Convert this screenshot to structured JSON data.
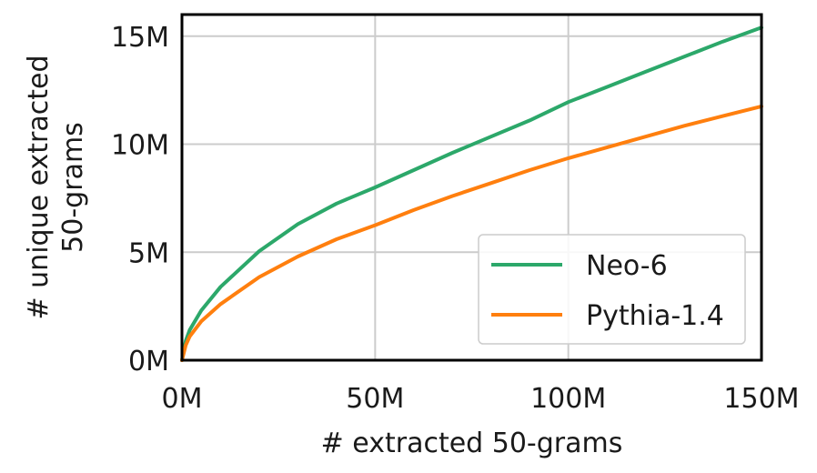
{
  "chart_data": {
    "type": "line",
    "xlabel": "# extracted 50-grams",
    "ylabel_lines": [
      "# unique extracted",
      "50-grams"
    ],
    "x_unit": "M",
    "y_unit": "M",
    "xlim": [
      0,
      150
    ],
    "ylim": [
      0,
      16
    ],
    "x_ticks": [
      0,
      50,
      100,
      150
    ],
    "y_ticks": [
      0,
      5,
      10,
      15
    ],
    "x_tick_labels": [
      "0M",
      "50M",
      "100M",
      "150M"
    ],
    "y_tick_labels": [
      "0M",
      "5M",
      "10M",
      "15M"
    ],
    "grid": true,
    "legend_position": "lower-right",
    "x": [
      0,
      1,
      2,
      5,
      10,
      20,
      30,
      40,
      50,
      60,
      70,
      80,
      90,
      100,
      110,
      120,
      130,
      140,
      150
    ],
    "series": [
      {
        "name": "Neo-6",
        "color": "#2ca86a",
        "values": [
          0,
          0.9,
          1.4,
          2.3,
          3.4,
          5.05,
          6.3,
          7.25,
          8.0,
          8.8,
          9.6,
          10.35,
          11.1,
          11.95,
          12.65,
          13.35,
          14.05,
          14.75,
          15.4
        ]
      },
      {
        "name": "Pythia-1.4",
        "color": "#ff7f0e",
        "values": [
          0,
          0.7,
          1.1,
          1.8,
          2.6,
          3.85,
          4.8,
          5.6,
          6.25,
          6.95,
          7.6,
          8.2,
          8.8,
          9.35,
          9.85,
          10.35,
          10.85,
          11.3,
          11.75
        ]
      }
    ]
  }
}
